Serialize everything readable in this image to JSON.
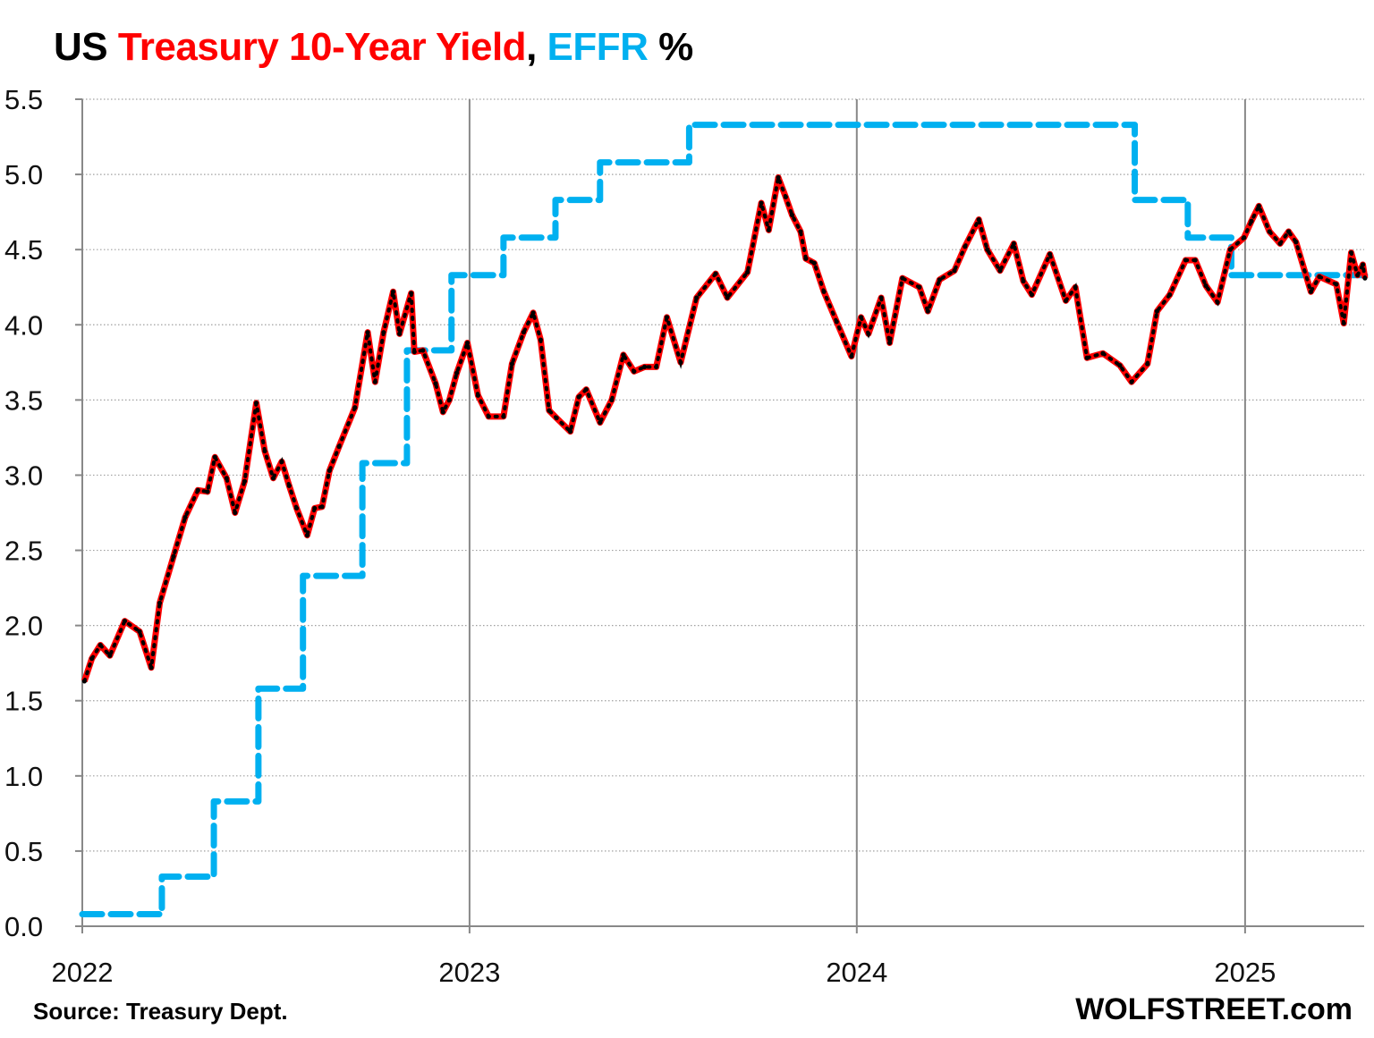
{
  "title": {
    "part1": "US ",
    "part2": "Treasury 10-Year Yield",
    "part3": ", ",
    "part4": "EFFR",
    "part5": " %"
  },
  "source": "Source: Treasury Dept.",
  "brand": "WOLFSTREET.com",
  "colors": {
    "yield": "#ff0000",
    "yield_markers": "#000000",
    "effr": "#00b0f0",
    "grid": "#a0a0a0"
  },
  "chart_data": {
    "type": "line",
    "ylim": [
      0,
      5.5
    ],
    "yticks": [
      "0.0",
      "0.5",
      "1.0",
      "1.5",
      "2.0",
      "2.5",
      "3.0",
      "3.5",
      "4.0",
      "4.5",
      "5.0",
      "5.5"
    ],
    "xticks": [
      "2022",
      "2023",
      "2024",
      "2025"
    ],
    "xlim": [
      "2022-01-01",
      "2025-04-24"
    ],
    "grid": {
      "horizontal": "dotted",
      "vertical": "year lines"
    },
    "series": [
      {
        "name": "Treasury 10-Year Yield",
        "style": "solid-red-with-black-markers",
        "points": [
          [
            "2022-01-03",
            1.63
          ],
          [
            "2022-01-10",
            1.78
          ],
          [
            "2022-01-18",
            1.87
          ],
          [
            "2022-01-27",
            1.8
          ],
          [
            "2022-02-10",
            2.03
          ],
          [
            "2022-02-24",
            1.96
          ],
          [
            "2022-03-07",
            1.72
          ],
          [
            "2022-03-15",
            2.15
          ],
          [
            "2022-03-28",
            2.46
          ],
          [
            "2022-04-08",
            2.72
          ],
          [
            "2022-04-20",
            2.9
          ],
          [
            "2022-04-29",
            2.89
          ],
          [
            "2022-05-06",
            3.12
          ],
          [
            "2022-05-17",
            2.98
          ],
          [
            "2022-05-25",
            2.75
          ],
          [
            "2022-06-03",
            2.96
          ],
          [
            "2022-06-14",
            3.48
          ],
          [
            "2022-06-22",
            3.16
          ],
          [
            "2022-06-30",
            2.98
          ],
          [
            "2022-07-08",
            3.09
          ],
          [
            "2022-07-15",
            2.93
          ],
          [
            "2022-07-22",
            2.78
          ],
          [
            "2022-08-01",
            2.6
          ],
          [
            "2022-08-08",
            2.78
          ],
          [
            "2022-08-15",
            2.79
          ],
          [
            "2022-08-22",
            3.03
          ],
          [
            "2022-08-31",
            3.19
          ],
          [
            "2022-09-15",
            3.45
          ],
          [
            "2022-09-27",
            3.95
          ],
          [
            "2022-10-04",
            3.62
          ],
          [
            "2022-10-12",
            3.95
          ],
          [
            "2022-10-21",
            4.22
          ],
          [
            "2022-10-27",
            3.94
          ],
          [
            "2022-11-07",
            4.21
          ],
          [
            "2022-11-10",
            3.82
          ],
          [
            "2022-11-18",
            3.83
          ],
          [
            "2022-11-30",
            3.61
          ],
          [
            "2022-12-07",
            3.42
          ],
          [
            "2022-12-13",
            3.5
          ],
          [
            "2022-12-20",
            3.68
          ],
          [
            "2022-12-30",
            3.88
          ],
          [
            "2023-01-09",
            3.53
          ],
          [
            "2023-01-19",
            3.39
          ],
          [
            "2023-02-02",
            3.39
          ],
          [
            "2023-02-10",
            3.74
          ],
          [
            "2023-02-21",
            3.95
          ],
          [
            "2023-03-02",
            4.08
          ],
          [
            "2023-03-09",
            3.9
          ],
          [
            "2023-03-17",
            3.43
          ],
          [
            "2023-03-24",
            3.38
          ],
          [
            "2023-04-06",
            3.29
          ],
          [
            "2023-04-14",
            3.52
          ],
          [
            "2023-04-21",
            3.57
          ],
          [
            "2023-05-04",
            3.35
          ],
          [
            "2023-05-15",
            3.5
          ],
          [
            "2023-05-26",
            3.8
          ],
          [
            "2023-06-05",
            3.69
          ],
          [
            "2023-06-15",
            3.72
          ],
          [
            "2023-06-26",
            3.72
          ],
          [
            "2023-07-06",
            4.05
          ],
          [
            "2023-07-19",
            3.75
          ],
          [
            "2023-08-03",
            4.18
          ],
          [
            "2023-08-21",
            4.34
          ],
          [
            "2023-09-01",
            4.18
          ],
          [
            "2023-09-20",
            4.35
          ],
          [
            "2023-10-03",
            4.81
          ],
          [
            "2023-10-10",
            4.63
          ],
          [
            "2023-10-19",
            4.98
          ],
          [
            "2023-10-26",
            4.85
          ],
          [
            "2023-11-01",
            4.73
          ],
          [
            "2023-11-09",
            4.62
          ],
          [
            "2023-11-14",
            4.44
          ],
          [
            "2023-11-22",
            4.41
          ],
          [
            "2023-12-01",
            4.22
          ],
          [
            "2023-12-13",
            4.02
          ],
          [
            "2023-12-27",
            3.79
          ],
          [
            "2024-01-05",
            4.05
          ],
          [
            "2024-01-12",
            3.94
          ],
          [
            "2024-01-24",
            4.18
          ],
          [
            "2024-02-01",
            3.88
          ],
          [
            "2024-02-13",
            4.31
          ],
          [
            "2024-02-29",
            4.25
          ],
          [
            "2024-03-08",
            4.09
          ],
          [
            "2024-03-19",
            4.3
          ],
          [
            "2024-04-02",
            4.36
          ],
          [
            "2024-04-12",
            4.52
          ],
          [
            "2024-04-25",
            4.7
          ],
          [
            "2024-05-03",
            4.5
          ],
          [
            "2024-05-15",
            4.36
          ],
          [
            "2024-05-28",
            4.54
          ],
          [
            "2024-06-06",
            4.29
          ],
          [
            "2024-06-14",
            4.2
          ],
          [
            "2024-07-01",
            4.47
          ],
          [
            "2024-07-16",
            4.16
          ],
          [
            "2024-07-25",
            4.25
          ],
          [
            "2024-08-05",
            3.78
          ],
          [
            "2024-08-20",
            3.81
          ],
          [
            "2024-09-05",
            3.73
          ],
          [
            "2024-09-16",
            3.62
          ],
          [
            "2024-10-01",
            3.74
          ],
          [
            "2024-10-10",
            4.09
          ],
          [
            "2024-10-22",
            4.2
          ],
          [
            "2024-11-06",
            4.43
          ],
          [
            "2024-11-15",
            4.43
          ],
          [
            "2024-11-25",
            4.26
          ],
          [
            "2024-12-06",
            4.15
          ],
          [
            "2024-12-18",
            4.5
          ],
          [
            "2024-12-31",
            4.58
          ],
          [
            "2025-01-07",
            4.69
          ],
          [
            "2025-01-14",
            4.79
          ],
          [
            "2025-01-24",
            4.62
          ],
          [
            "2025-02-03",
            4.54
          ],
          [
            "2025-02-11",
            4.62
          ],
          [
            "2025-02-18",
            4.55
          ],
          [
            "2025-03-04",
            4.22
          ],
          [
            "2025-03-12",
            4.32
          ],
          [
            "2025-03-28",
            4.27
          ],
          [
            "2025-04-04",
            4.01
          ],
          [
            "2025-04-11",
            4.48
          ],
          [
            "2025-04-17",
            4.33
          ],
          [
            "2025-04-22",
            4.4
          ],
          [
            "2025-04-24",
            4.31
          ]
        ]
      },
      {
        "name": "EFFR",
        "style": "dashed-blue-step",
        "steps": [
          [
            "2022-01-01",
            0.08
          ],
          [
            "2022-03-17",
            0.33
          ],
          [
            "2022-05-05",
            0.83
          ],
          [
            "2022-06-16",
            1.58
          ],
          [
            "2022-07-28",
            2.33
          ],
          [
            "2022-09-22",
            3.08
          ],
          [
            "2022-11-03",
            3.83
          ],
          [
            "2022-12-15",
            4.33
          ],
          [
            "2023-02-02",
            4.58
          ],
          [
            "2023-03-23",
            4.83
          ],
          [
            "2023-05-04",
            5.08
          ],
          [
            "2023-07-27",
            5.33
          ],
          [
            "2024-09-19",
            4.83
          ],
          [
            "2024-11-08",
            4.58
          ],
          [
            "2024-12-19",
            4.33
          ],
          [
            "2025-04-24",
            4.33
          ]
        ]
      }
    ]
  }
}
